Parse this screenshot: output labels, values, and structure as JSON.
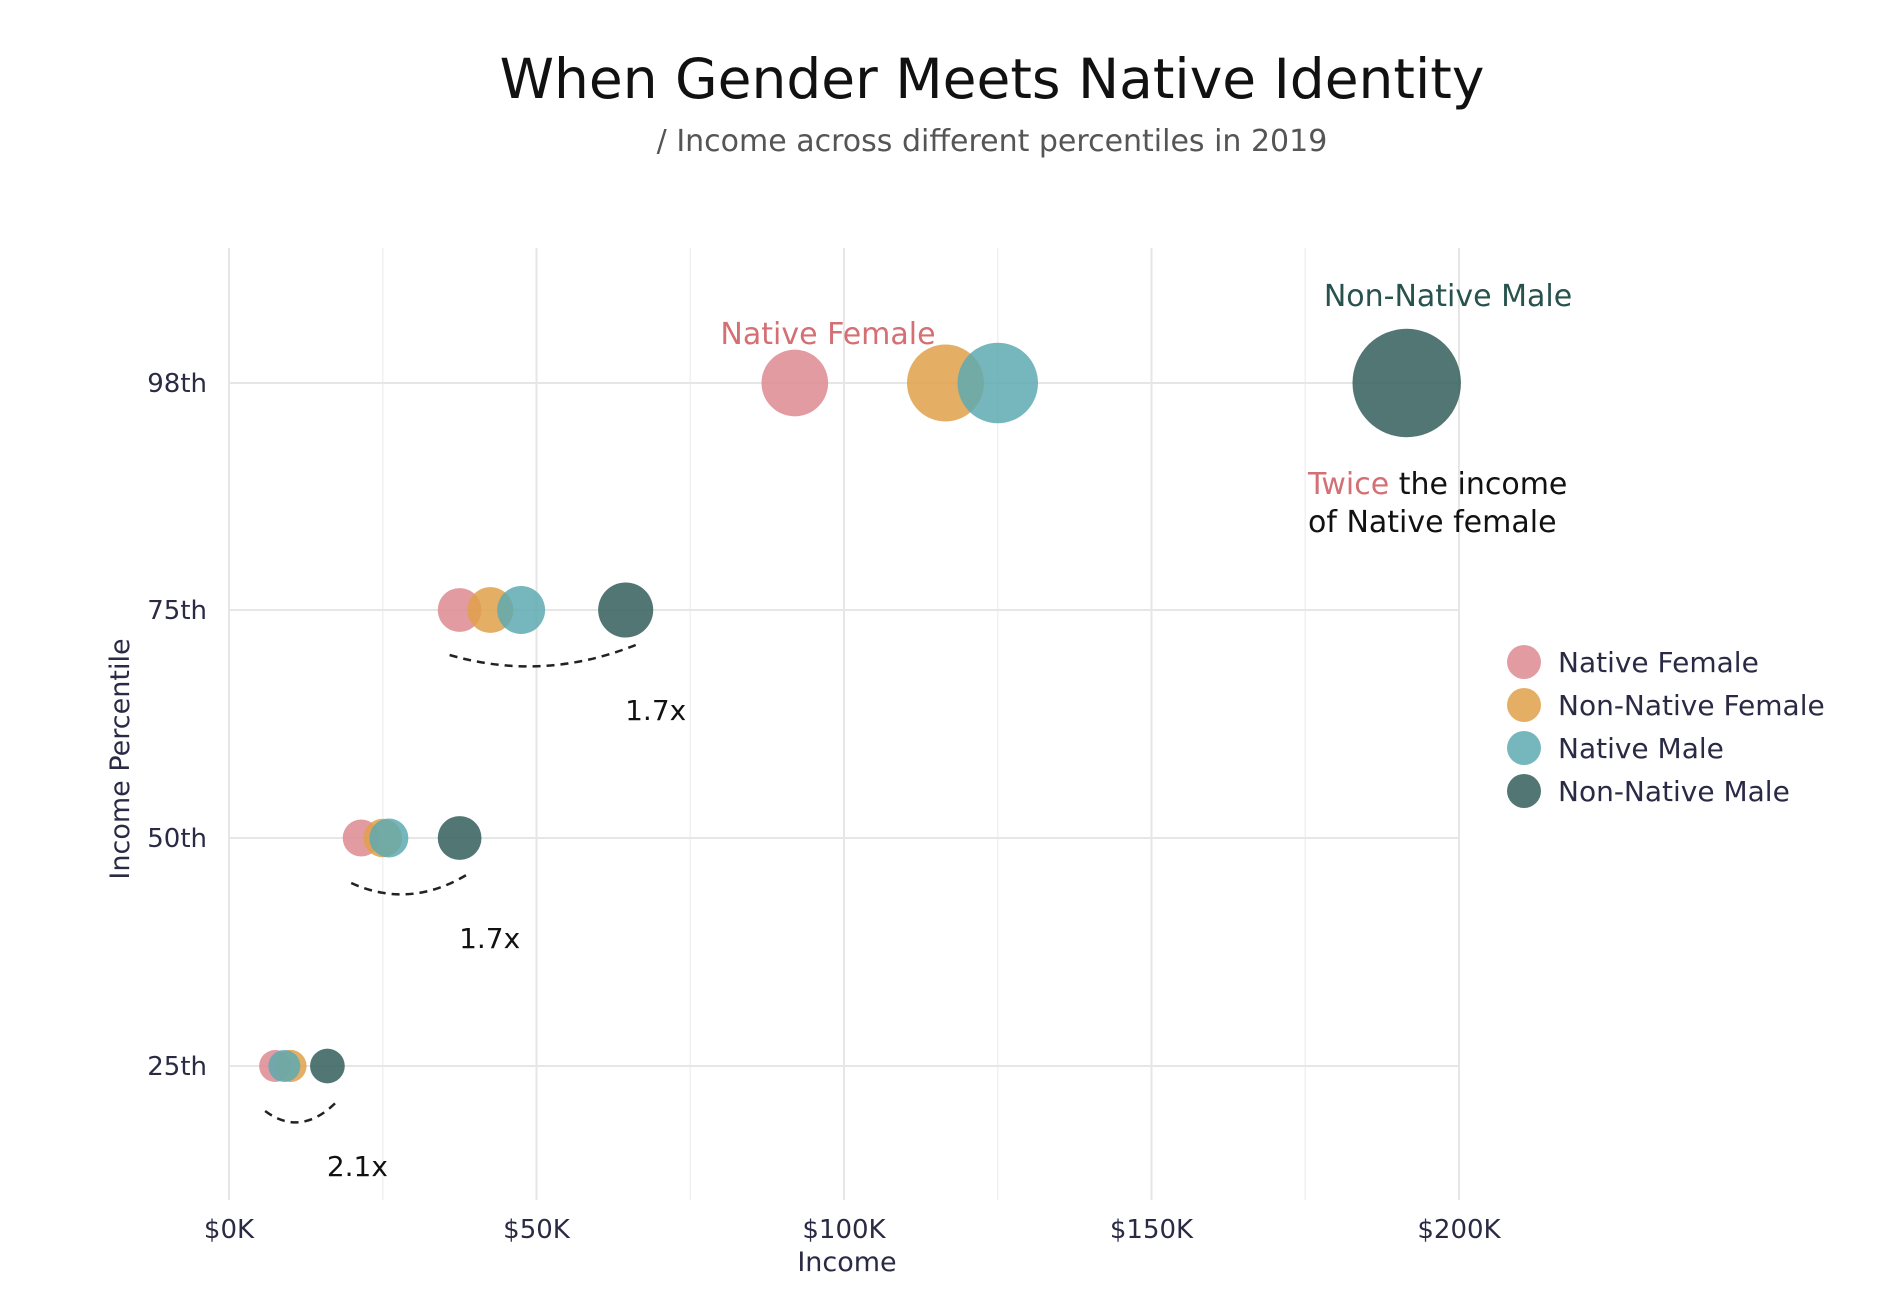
{
  "chart_data": {
    "type": "scatter",
    "title": "When Gender Meets Native Identity",
    "subtitle": "/ Income across different percentiles in 2019",
    "xlabel": "Income",
    "ylabel": "Income Percentile",
    "xlim": [
      0,
      200000
    ],
    "x_ticks": [
      {
        "value": 0,
        "label": "$0K"
      },
      {
        "value": 50000,
        "label": "$50K"
      },
      {
        "value": 100000,
        "label": "$100K"
      },
      {
        "value": 150000,
        "label": "$150K"
      },
      {
        "value": 200000,
        "label": "$200K"
      }
    ],
    "categories": [
      "25th",
      "50th",
      "75th",
      "98th"
    ],
    "grid": true,
    "legend_position": "right",
    "series": [
      {
        "name": "Native Female",
        "color": "#dc8a90",
        "x": [
          7500,
          21500,
          37500,
          92000
        ]
      },
      {
        "name": "Non-Native Female",
        "color": "#e0a04a",
        "x": [
          10000,
          25000,
          42500,
          116500
        ]
      },
      {
        "name": "Native Male",
        "color": "#5ea9b2",
        "x": [
          9000,
          26000,
          47500,
          125000
        ]
      },
      {
        "name": "Non-Native Male",
        "color": "#325e5a",
        "x": [
          16000,
          37500,
          64500,
          191500
        ]
      }
    ],
    "annotations": {
      "native_female_label": "Native Female",
      "non_native_male_label": "Non-Native Male",
      "twice_word": "Twice",
      "twice_rest_line1": " the income",
      "twice_line2": "of Native female",
      "ratios": [
        {
          "category": "25th",
          "label": "2.1x"
        },
        {
          "category": "50th",
          "label": "1.7x"
        },
        {
          "category": "75th",
          "label": "1.7x"
        }
      ]
    }
  }
}
